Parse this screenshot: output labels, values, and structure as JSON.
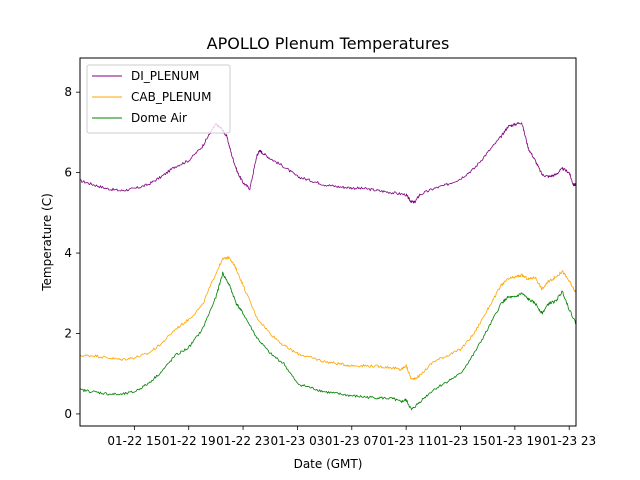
{
  "chart_data": {
    "type": "line",
    "title": "APOLLO Plenum Temperatures",
    "xlabel": "Date (GMT)",
    "ylabel": "Temperature (C)",
    "xlim": [
      11.0,
      47.5
    ],
    "ylim": [
      -0.3,
      8.85
    ],
    "x_unit": "hours since 2023-01-22 00:00 GMT",
    "xticks": [
      {
        "x": 15,
        "label": "01-22 15"
      },
      {
        "x": 19,
        "label": "01-22 19"
      },
      {
        "x": 23,
        "label": "01-22 23"
      },
      {
        "x": 27,
        "label": "01-23 03"
      },
      {
        "x": 31,
        "label": "01-23 07"
      },
      {
        "x": 35,
        "label": "01-23 11"
      },
      {
        "x": 39,
        "label": "01-23 15"
      },
      {
        "x": 43,
        "label": "01-23 19"
      },
      {
        "x": 47,
        "label": "01-23 23"
      }
    ],
    "yticks": [
      {
        "y": 0,
        "label": "0"
      },
      {
        "y": 2,
        "label": "2"
      },
      {
        "y": 4,
        "label": "4"
      },
      {
        "y": 6,
        "label": "6"
      },
      {
        "y": 8,
        "label": "8"
      }
    ],
    "legend_position": "top-left",
    "series": [
      {
        "name": "DI_PLENUM",
        "color": "#800080",
        "x": [
          11.0,
          12.0,
          13.0,
          14.0,
          15.0,
          16.0,
          17.0,
          18.0,
          19.0,
          20.0,
          20.6,
          21.0,
          21.4,
          21.8,
          22.2,
          22.6,
          23.0,
          23.5,
          24.0,
          24.2,
          24.4,
          25.0,
          26.0,
          27.0,
          28.0,
          29.0,
          30.0,
          31.0,
          32.0,
          33.0,
          34.0,
          35.0,
          35.3,
          35.6,
          36.0,
          37.0,
          38.0,
          39.0,
          40.0,
          41.0,
          42.0,
          42.5,
          43.0,
          43.5,
          44.0,
          44.5,
          45.0,
          45.5,
          46.0,
          46.5,
          47.0,
          47.3,
          47.5
        ],
        "values": [
          5.8,
          5.7,
          5.6,
          5.55,
          5.6,
          5.7,
          5.9,
          6.15,
          6.3,
          6.65,
          7.0,
          7.2,
          7.1,
          6.9,
          6.4,
          6.0,
          5.75,
          5.6,
          6.4,
          6.55,
          6.5,
          6.35,
          6.15,
          5.9,
          5.8,
          5.7,
          5.65,
          5.62,
          5.6,
          5.55,
          5.5,
          5.45,
          5.3,
          5.25,
          5.45,
          5.6,
          5.7,
          5.85,
          6.1,
          6.5,
          6.9,
          7.15,
          7.2,
          7.25,
          6.6,
          6.3,
          5.95,
          5.9,
          5.95,
          6.1,
          6.0,
          5.7,
          5.7
        ]
      },
      {
        "name": "CAB_PLENUM",
        "color": "#ffa500",
        "x": [
          11.0,
          12.0,
          13.0,
          14.0,
          15.0,
          16.0,
          17.0,
          18.0,
          19.0,
          20.0,
          21.0,
          21.5,
          22.0,
          22.5,
          23.0,
          24.0,
          25.0,
          26.0,
          27.0,
          28.0,
          29.0,
          30.0,
          31.0,
          32.0,
          33.0,
          34.0,
          34.6,
          35.0,
          35.4,
          36.0,
          37.0,
          38.0,
          39.0,
          40.0,
          41.0,
          42.0,
          42.5,
          43.0,
          43.5,
          44.0,
          44.5,
          45.0,
          45.5,
          46.0,
          46.5,
          47.0,
          47.5
        ],
        "values": [
          1.45,
          1.45,
          1.4,
          1.35,
          1.4,
          1.5,
          1.75,
          2.1,
          2.35,
          2.7,
          3.5,
          3.85,
          3.9,
          3.6,
          3.2,
          2.4,
          2.0,
          1.7,
          1.5,
          1.4,
          1.3,
          1.25,
          1.2,
          1.2,
          1.18,
          1.15,
          1.1,
          1.2,
          0.85,
          0.95,
          1.3,
          1.45,
          1.6,
          2.0,
          2.6,
          3.2,
          3.35,
          3.4,
          3.45,
          3.35,
          3.4,
          3.1,
          3.3,
          3.4,
          3.55,
          3.3,
          3.0
        ]
      },
      {
        "name": "Dome Air",
        "color": "#008000",
        "x": [
          11.0,
          12.0,
          13.0,
          14.0,
          15.0,
          16.0,
          17.0,
          18.0,
          19.0,
          20.0,
          21.0,
          21.5,
          22.0,
          22.5,
          23.0,
          24.0,
          25.0,
          26.0,
          27.0,
          28.0,
          29.0,
          30.0,
          31.0,
          32.0,
          33.0,
          34.0,
          34.6,
          35.0,
          35.4,
          36.0,
          37.0,
          38.0,
          39.0,
          40.0,
          41.0,
          42.0,
          42.5,
          43.0,
          43.5,
          44.0,
          44.5,
          45.0,
          45.5,
          46.0,
          46.5,
          47.0,
          47.5
        ],
        "values": [
          0.6,
          0.55,
          0.5,
          0.48,
          0.55,
          0.75,
          1.05,
          1.45,
          1.65,
          2.1,
          2.9,
          3.5,
          3.2,
          2.75,
          2.5,
          1.9,
          1.5,
          1.25,
          0.75,
          0.65,
          0.55,
          0.5,
          0.45,
          0.42,
          0.4,
          0.38,
          0.3,
          0.35,
          0.1,
          0.3,
          0.6,
          0.8,
          1.0,
          1.5,
          2.1,
          2.75,
          2.9,
          2.9,
          3.0,
          2.85,
          2.75,
          2.5,
          2.75,
          2.8,
          3.05,
          2.6,
          2.25
        ]
      }
    ]
  }
}
